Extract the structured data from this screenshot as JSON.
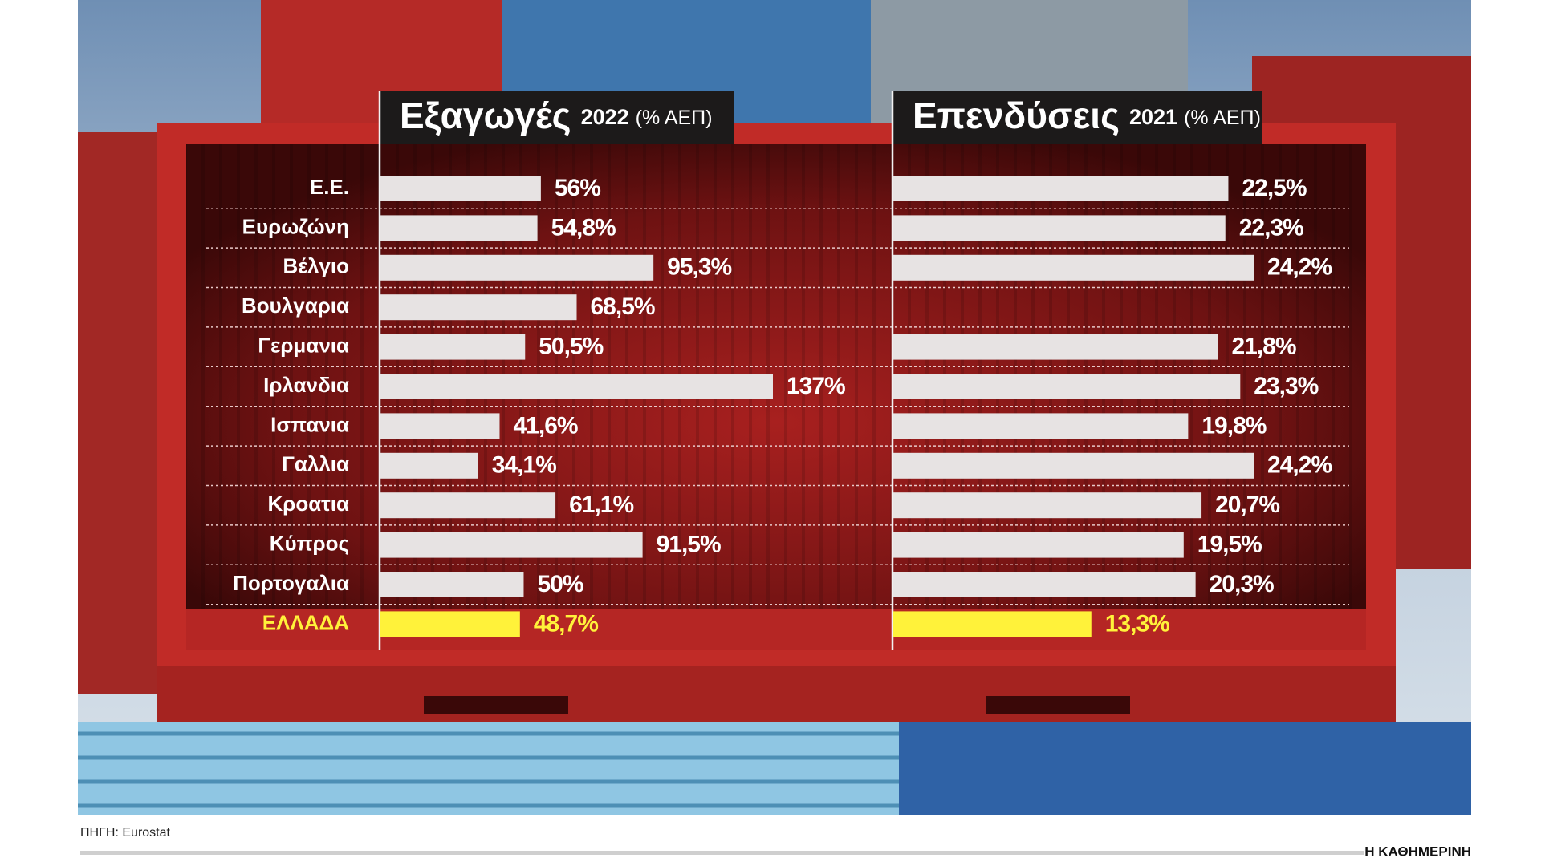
{
  "chart_data": [
    {
      "type": "bar",
      "orientation": "horizontal",
      "title": "Εξαγωγές",
      "subtitle": "2022",
      "unit": "(% ΑΕΠ)",
      "categories": [
        "Ε.Ε.",
        "Ευρωζώνη",
        "Βέλγιο",
        "Βουλγαρια",
        "Γερμανια",
        "Ιρλανδια",
        "Ισπανια",
        "Γαλλια",
        "Κροατια",
        "Κύπρος",
        "Πορτογαλια",
        "ΕΛΛΑΔΑ"
      ],
      "values": [
        56,
        54.8,
        95.3,
        68.5,
        50.5,
        137,
        41.6,
        34.1,
        61.1,
        91.5,
        50,
        48.7
      ],
      "value_labels": [
        "56%",
        "54,8%",
        "95,3%",
        "68,5%",
        "50,5%",
        "137%",
        "41,6%",
        "34,1%",
        "61,1%",
        "91,5%",
        "50%",
        "48,7%"
      ],
      "colors": [
        "#e7e3e3",
        "#e7e3e3",
        "#e7e3e3",
        "#e7e3e3",
        "#e7e3e3",
        "#e7e3e3",
        "#e7e3e3",
        "#e7e3e3",
        "#e7e3e3",
        "#e7e3e3",
        "#e7e3e3",
        "#fff23a"
      ]
    },
    {
      "type": "bar",
      "orientation": "horizontal",
      "title": "Επενδύσεις",
      "subtitle": "2021",
      "unit": "(% ΑΕΠ)",
      "values": [
        22.5,
        22.3,
        24.2,
        null,
        21.8,
        23.3,
        19.8,
        24.2,
        20.7,
        19.5,
        20.3,
        13.3
      ],
      "value_labels": [
        "22,5%",
        "22,3%",
        "24,2%",
        null,
        "21,8%",
        "23,3%",
        "19,8%",
        "24,2%",
        "20,7%",
        "19,5%",
        "20,3%",
        "13,3%"
      ],
      "colors": [
        "#e7e3e3",
        "#e7e3e3",
        "#e7e3e3",
        "#e7e3e3",
        "#e7e3e3",
        "#e7e3e3",
        "#e7e3e3",
        "#e7e3e3",
        "#e7e3e3",
        "#e7e3e3",
        "#e7e3e3",
        "#fff23a"
      ]
    }
  ],
  "source": "ΠΗΓΗ: Eurostat",
  "publisher": "Η ΚΑΘΗΜΕΡΙΝΗ"
}
